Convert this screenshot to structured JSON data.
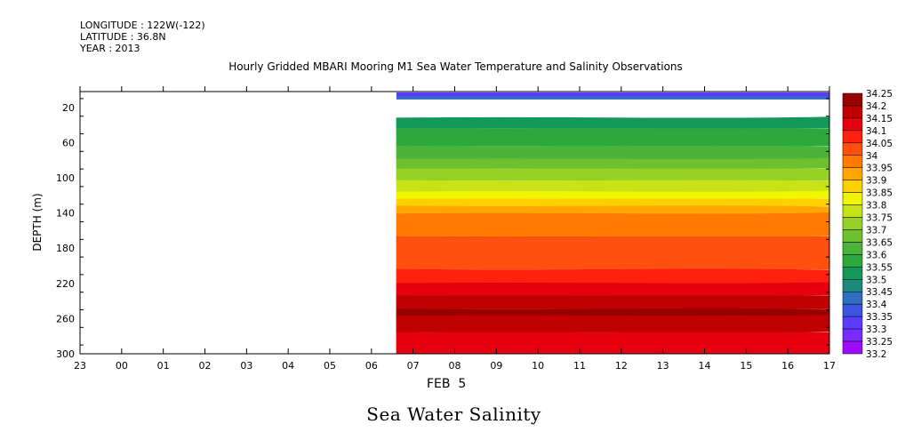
{
  "header": {
    "longitude": "LONGITUDE : 122W(-122)",
    "latitude": "LATITUDE : 36.8N",
    "year": "YEAR : 2013",
    "title": "Hourly Gridded MBARI Mooring M1 Sea Water Temperature and Salinity Observations"
  },
  "footer": {
    "variable_title": "Sea Water Salinity",
    "date_label": "FEB  5"
  },
  "chart_data": {
    "type": "heatmap",
    "title": "Hourly Gridded MBARI Mooring M1 Sea Water Temperature and Salinity Observations",
    "xlabel": "FEB  5",
    "ylabel": "DEPTH (m)",
    "x_ticks": [
      "23",
      "00",
      "01",
      "02",
      "03",
      "04",
      "05",
      "06",
      "07",
      "08",
      "09",
      "10",
      "11",
      "12",
      "13",
      "14",
      "15",
      "16",
      "17"
    ],
    "x_range_hours": [
      23,
      41
    ],
    "y_ticks": [
      20,
      60,
      100,
      140,
      180,
      220,
      260,
      300
    ],
    "ylim": [
      300,
      2
    ],
    "data_start_hour": 30.6,
    "colorbar_levels": [
      33.2,
      33.25,
      33.3,
      33.35,
      33.4,
      33.45,
      33.5,
      33.55,
      33.6,
      33.65,
      33.7,
      33.75,
      33.8,
      33.85,
      33.9,
      33.95,
      34,
      34.05,
      34.1,
      34.15,
      34.2,
      34.25
    ],
    "colorbar_labels": [
      "34.25",
      "34.2",
      "34.15",
      "34.1",
      "34.05",
      "34",
      "33.95",
      "33.9",
      "33.85",
      "33.8",
      "33.75",
      "33.7",
      "33.65",
      "33.6",
      "33.55",
      "33.5",
      "33.45",
      "33.4",
      "33.35",
      "33.3",
      "33.25",
      "33.2"
    ],
    "colorbar_colors": [
      "#cc00ff",
      "#9f0dff",
      "#7a2bff",
      "#5a3cff",
      "#3b55e0",
      "#2e6fbf",
      "#1a8a7a",
      "#13985a",
      "#2da83c",
      "#4bb33a",
      "#6ec12e",
      "#97d126",
      "#c7e318",
      "#f0f500",
      "#ffd000",
      "#ffa600",
      "#ff7a00",
      "#ff5010",
      "#ff2010",
      "#e60010",
      "#c00000",
      "#990000"
    ],
    "surface_bands": [
      {
        "depth_top": 3,
        "depth_bottom": 8,
        "value": 33.35
      },
      {
        "depth_top": 8,
        "depth_bottom": 11,
        "value": 33.45
      }
    ],
    "profile_depths": [
      32,
      300
    ],
    "contour_sections": [
      {
        "hour": 30.6,
        "boundaries": [
          {
            "depth": 32,
            "value": 33.55
          },
          {
            "depth": 44,
            "value": 33.6
          },
          {
            "depth": 64,
            "value": 33.65
          },
          {
            "depth": 79,
            "value": 33.7
          },
          {
            "depth": 90,
            "value": 33.75
          },
          {
            "depth": 103,
            "value": 33.8
          },
          {
            "depth": 116,
            "value": 33.85
          },
          {
            "depth": 124,
            "value": 33.9
          },
          {
            "depth": 132,
            "value": 33.95
          },
          {
            "depth": 141,
            "value": 34.0
          },
          {
            "depth": 167,
            "value": 34.05
          },
          {
            "depth": 204,
            "value": 34.1
          },
          {
            "depth": 220,
            "value": 34.15
          },
          {
            "depth": 234,
            "value": 34.2
          },
          {
            "depth": 249,
            "value": 34.25
          },
          {
            "depth": 257,
            "value": 34.2
          },
          {
            "depth": 276,
            "value": 34.15
          },
          {
            "depth": 300,
            "value": 34.1
          }
        ]
      }
    ]
  }
}
